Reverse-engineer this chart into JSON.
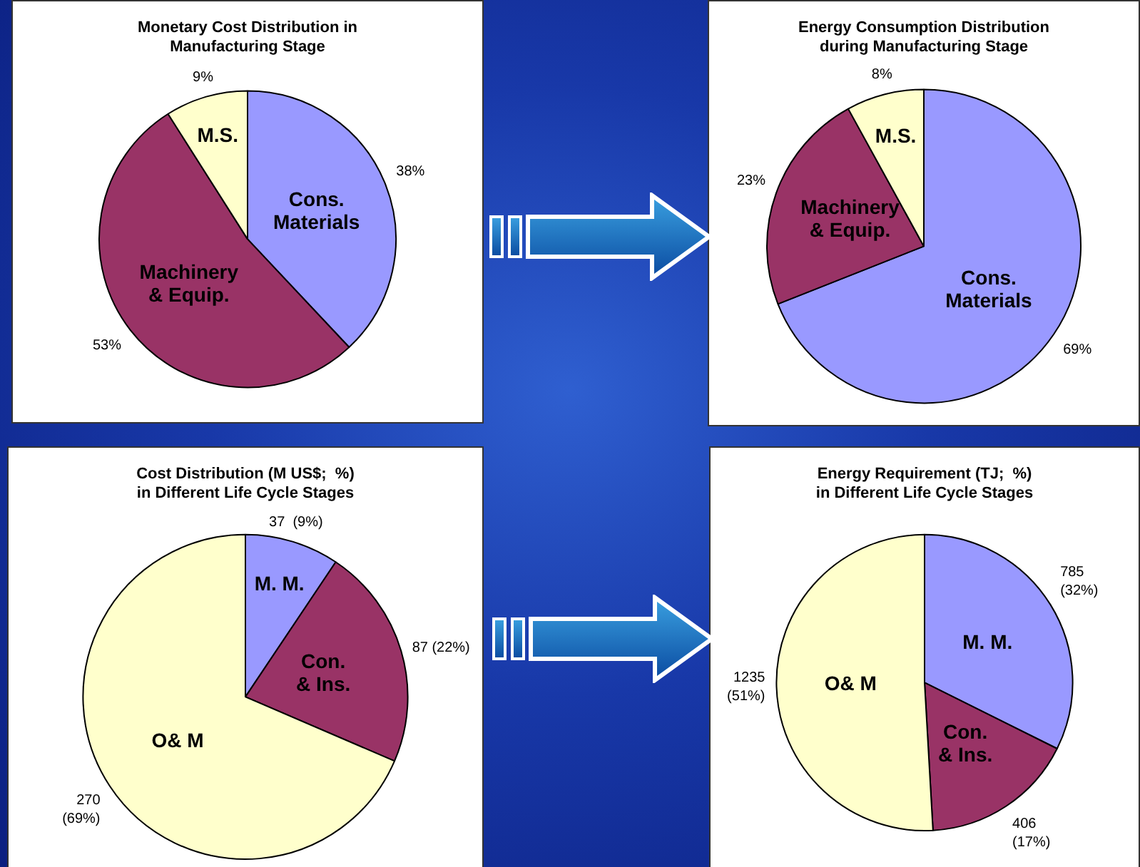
{
  "chart_data": [
    {
      "type": "pie",
      "title": "Monetary Cost Distribution in\nManufacturing Stage",
      "categories": [
        "Cons. Materials",
        "Machinery & Equip.",
        "M.S."
      ],
      "values": [
        38,
        53,
        9
      ],
      "colors": [
        "#9999ff",
        "#993366",
        "#ffffcc"
      ],
      "value_labels": [
        "38%",
        "53%",
        "9%"
      ],
      "legend": false
    },
    {
      "type": "pie",
      "title": "Energy Consumption Distribution\nduring Manufacturing Stage",
      "categories": [
        "Cons. Materials",
        "Machinery & Equip.",
        "M.S."
      ],
      "values": [
        69,
        23,
        8
      ],
      "colors": [
        "#9999ff",
        "#993366",
        "#ffffcc"
      ],
      "value_labels": [
        "69%",
        "23%",
        "8%"
      ],
      "legend": false
    },
    {
      "type": "pie",
      "title": "Cost Distribution (M US$;  %)\nin Different Life Cycle Stages",
      "categories": [
        "M. M.",
        "Con. & Ins.",
        "O& M"
      ],
      "values": [
        37,
        87,
        270
      ],
      "colors": [
        "#9999ff",
        "#993366",
        "#ffffcc"
      ],
      "value_labels": [
        "37  (9%)",
        "87 (22%)",
        "270 (69%)"
      ],
      "legend": false
    },
    {
      "type": "pie",
      "title": "Energy Requirement (TJ;  %)\nin Different Life Cycle Stages",
      "categories": [
        "M. M.",
        "Con. & Ins.",
        "O& M"
      ],
      "values": [
        785,
        406,
        1235
      ],
      "colors": [
        "#9999ff",
        "#993366",
        "#ffffcc"
      ],
      "value_labels": [
        "785 (32%)",
        "406 (17%)",
        "1235 (51%)"
      ],
      "legend": false
    }
  ]
}
